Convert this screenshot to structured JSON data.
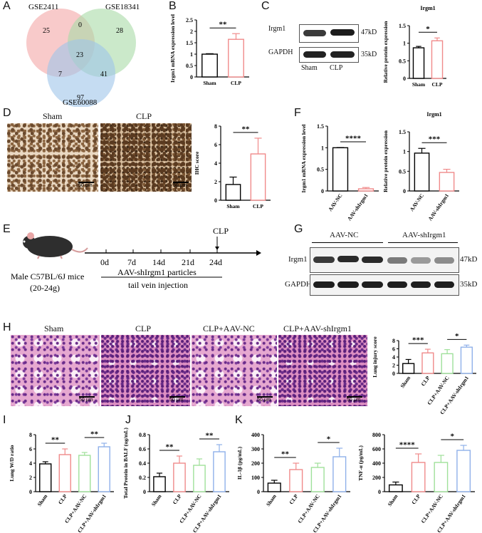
{
  "panels": {
    "A": "A",
    "B": "B",
    "C": "C",
    "D": "D",
    "E": "E",
    "F": "F",
    "G": "G",
    "H": "H",
    "I": "I",
    "J": "J",
    "K": "K"
  },
  "venn": {
    "sets": [
      "GSE2411",
      "GSE18341",
      "GSE60088"
    ],
    "regions": {
      "a_only": "25",
      "b_only": "28",
      "c_only": "97",
      "ab": "0",
      "ac": "7",
      "bc": "41",
      "abc": "23"
    },
    "colors": [
      "#f4a6a6",
      "#a8dba6",
      "#9ec4ea"
    ]
  },
  "blot_c": {
    "labels": [
      "Irgm1",
      "GAPDH"
    ],
    "sizes": [
      "47kD",
      "35kD"
    ],
    "lanes": [
      "Sham",
      "CLP"
    ]
  },
  "blot_g": {
    "groups": [
      "AAV-NC",
      "AAV-shIrgm1"
    ],
    "labels": [
      "Irgm1",
      "GAPDH"
    ],
    "sizes": [
      "47kD",
      "35kD"
    ]
  },
  "ihc": {
    "labels": [
      "Sham",
      "CLP"
    ],
    "scale": "50 μm"
  },
  "he": {
    "labels": [
      "Sham",
      "CLP",
      "CLP+AAV-NC",
      "CLP+AAV-shIrgm1"
    ],
    "scale": "50 μm"
  },
  "timeline": {
    "mouse": "Male C57BL/6J mice",
    "weight": "(20-24g)",
    "days": [
      "0d",
      "7d",
      "14d",
      "21d",
      "24d"
    ],
    "event": "CLP",
    "treat1": "AAV-shIrgm1 particles",
    "treat2": "tail vein injection"
  },
  "colors": {
    "sham": "#000000",
    "clp": "#f08a8a",
    "nc": "#9fe09a",
    "sh": "#8fb0ea"
  },
  "chart_data": [
    {
      "id": "B",
      "type": "bar",
      "categories": [
        "Sham",
        "CLP"
      ],
      "values": [
        1.0,
        1.65
      ],
      "errors": [
        0.02,
        0.25
      ],
      "ylabel": "Irgm1 mRNA expression level",
      "ylim": [
        0,
        2.5
      ],
      "ticks": [
        0,
        0.5,
        1.0,
        1.5,
        2.0,
        2.5
      ],
      "sig": [
        {
          "from": 0,
          "to": 1,
          "text": "**"
        }
      ]
    },
    {
      "id": "C2",
      "type": "bar",
      "title": "Irgm1",
      "categories": [
        "Sham",
        "CLP"
      ],
      "values": [
        0.87,
        1.07
      ],
      "errors": [
        0.04,
        0.08
      ],
      "ylabel": "Relative protein expression",
      "ylim": [
        0,
        1.5
      ],
      "ticks": [
        0,
        0.5,
        1.0,
        1.5
      ],
      "sig": [
        {
          "from": 0,
          "to": 1,
          "text": "*"
        }
      ]
    },
    {
      "id": "D2",
      "type": "bar",
      "categories": [
        "Sham",
        "CLP"
      ],
      "values": [
        1.7,
        5.0
      ],
      "errors": [
        0.8,
        1.7
      ],
      "ylabel": "IHC score",
      "ylim": [
        0,
        8
      ],
      "ticks": [
        0,
        2,
        4,
        6,
        8
      ],
      "sig": [
        {
          "from": 0,
          "to": 1,
          "text": "**"
        }
      ]
    },
    {
      "id": "F1",
      "type": "bar",
      "categories": [
        "AAV-NC",
        "AAV-shIrgm1"
      ],
      "values": [
        1.0,
        0.05
      ],
      "errors": [
        0.005,
        0.03
      ],
      "ylabel": "Irgm1 mRNA expression level",
      "ylim": [
        0,
        1.5
      ],
      "ticks": [
        0,
        0.5,
        1.0,
        1.5
      ],
      "sig": [
        {
          "from": 0,
          "to": 1,
          "text": "****"
        }
      ]
    },
    {
      "id": "F2",
      "type": "bar",
      "title": "Irgm1",
      "categories": [
        "AAV-NC",
        "AAV-shIrgm1"
      ],
      "values": [
        0.96,
        0.47
      ],
      "errors": [
        0.12,
        0.08
      ],
      "ylabel": "Relative protein expression",
      "ylim": [
        0,
        1.5
      ],
      "ticks": [
        0,
        0.5,
        1.0,
        1.5
      ],
      "sig": [
        {
          "from": 0,
          "to": 1,
          "text": "***"
        }
      ]
    },
    {
      "id": "H2",
      "type": "bar",
      "categories": [
        "Sham",
        "CLP",
        "CLP+AAV-NC",
        "CLP+AAV-shIrgm1"
      ],
      "values": [
        2.4,
        5.0,
        4.8,
        6.4
      ],
      "errors": [
        1.0,
        0.9,
        1.0,
        0.5
      ],
      "ylabel": "Lung injury score",
      "ylim": [
        0,
        8
      ],
      "ticks": [
        0,
        2,
        4,
        6,
        8
      ],
      "sig": [
        {
          "from": 0,
          "to": 1,
          "text": "***"
        },
        {
          "from": 2,
          "to": 3,
          "text": "*"
        }
      ]
    },
    {
      "id": "I",
      "type": "bar",
      "categories": [
        "Sham",
        "CLP",
        "CLP+AAV-NC",
        "CLP+AAV-shIrgm1"
      ],
      "values": [
        3.9,
        5.2,
        5.1,
        6.3
      ],
      "errors": [
        0.3,
        0.8,
        0.4,
        0.5
      ],
      "ylabel": "Lung W/D ratio",
      "ylim": [
        0,
        8
      ],
      "ticks": [
        0,
        2,
        4,
        6,
        8
      ],
      "sig": [
        {
          "from": 0,
          "to": 1,
          "text": "**"
        },
        {
          "from": 2,
          "to": 3,
          "text": "**"
        }
      ]
    },
    {
      "id": "J",
      "type": "bar",
      "categories": [
        "Sham",
        "CLP",
        "CLP+AAV-NC",
        "CLP+AAV-shIrgm1"
      ],
      "values": [
        0.21,
        0.4,
        0.37,
        0.56
      ],
      "errors": [
        0.05,
        0.1,
        0.09,
        0.1
      ],
      "ylabel": "Total Protein in BALF (ug/mL)",
      "ylim": [
        0,
        0.8
      ],
      "ticks": [
        0,
        0.2,
        0.4,
        0.6,
        0.8
      ],
      "sig": [
        {
          "from": 0,
          "to": 1,
          "text": "**"
        },
        {
          "from": 2,
          "to": 3,
          "text": "**"
        }
      ]
    },
    {
      "id": "K1",
      "type": "bar",
      "categories": [
        "Sham",
        "CLP",
        "CLP+AAV-NC",
        "CLP+AAV-shIrgm1"
      ],
      "values": [
        60,
        155,
        170,
        245
      ],
      "errors": [
        20,
        45,
        30,
        60
      ],
      "ylabel": "IL-1β (pg/mL)",
      "ylim": [
        0,
        400
      ],
      "ticks": [
        0,
        100,
        200,
        300,
        400
      ],
      "sig": [
        {
          "from": 0,
          "to": 1,
          "text": "**"
        },
        {
          "from": 2,
          "to": 3,
          "text": "*"
        }
      ]
    },
    {
      "id": "K2",
      "type": "bar",
      "categories": [
        "Sham",
        "CLP",
        "CLP+AAV-NC",
        "CLP+AAV-shIrgm1"
      ],
      "values": [
        95,
        410,
        410,
        580
      ],
      "errors": [
        40,
        120,
        100,
        70
      ],
      "ylabel": "TNF-α (pg/mL)",
      "ylim": [
        0,
        800
      ],
      "ticks": [
        0,
        200,
        400,
        600,
        800
      ],
      "sig": [
        {
          "from": 0,
          "to": 1,
          "text": "****"
        },
        {
          "from": 2,
          "to": 3,
          "text": "*"
        }
      ]
    }
  ]
}
